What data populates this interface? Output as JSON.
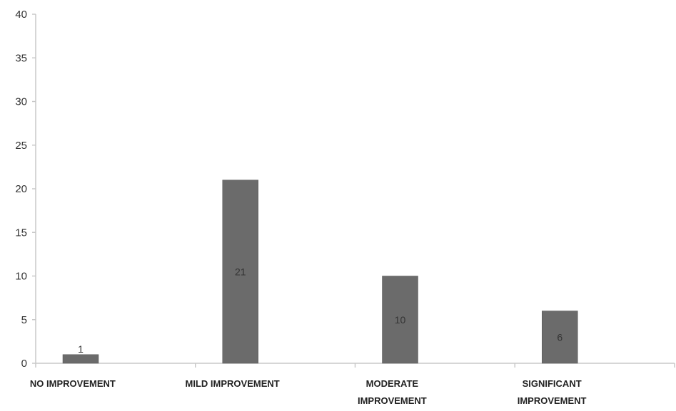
{
  "chart_data": {
    "type": "bar",
    "categories": [
      [
        "NO IMPROVEMENT"
      ],
      [
        "MILD IMPROVEMENT"
      ],
      [
        "MODERATE",
        "IMPROVEMENT"
      ],
      [
        "SIGNIFICANT",
        "IMPROVEMENT"
      ]
    ],
    "values": [
      1,
      21,
      10,
      6
    ],
    "data_labels": [
      "1",
      "21",
      "10",
      "6"
    ],
    "ylim": [
      0,
      40
    ],
    "yticks": [
      0,
      5,
      10,
      15,
      20,
      25,
      30,
      35,
      40
    ],
    "grid": false,
    "legend": "none",
    "bar_color": "#6b6b6b",
    "axis_color": "#c8c8c8"
  }
}
